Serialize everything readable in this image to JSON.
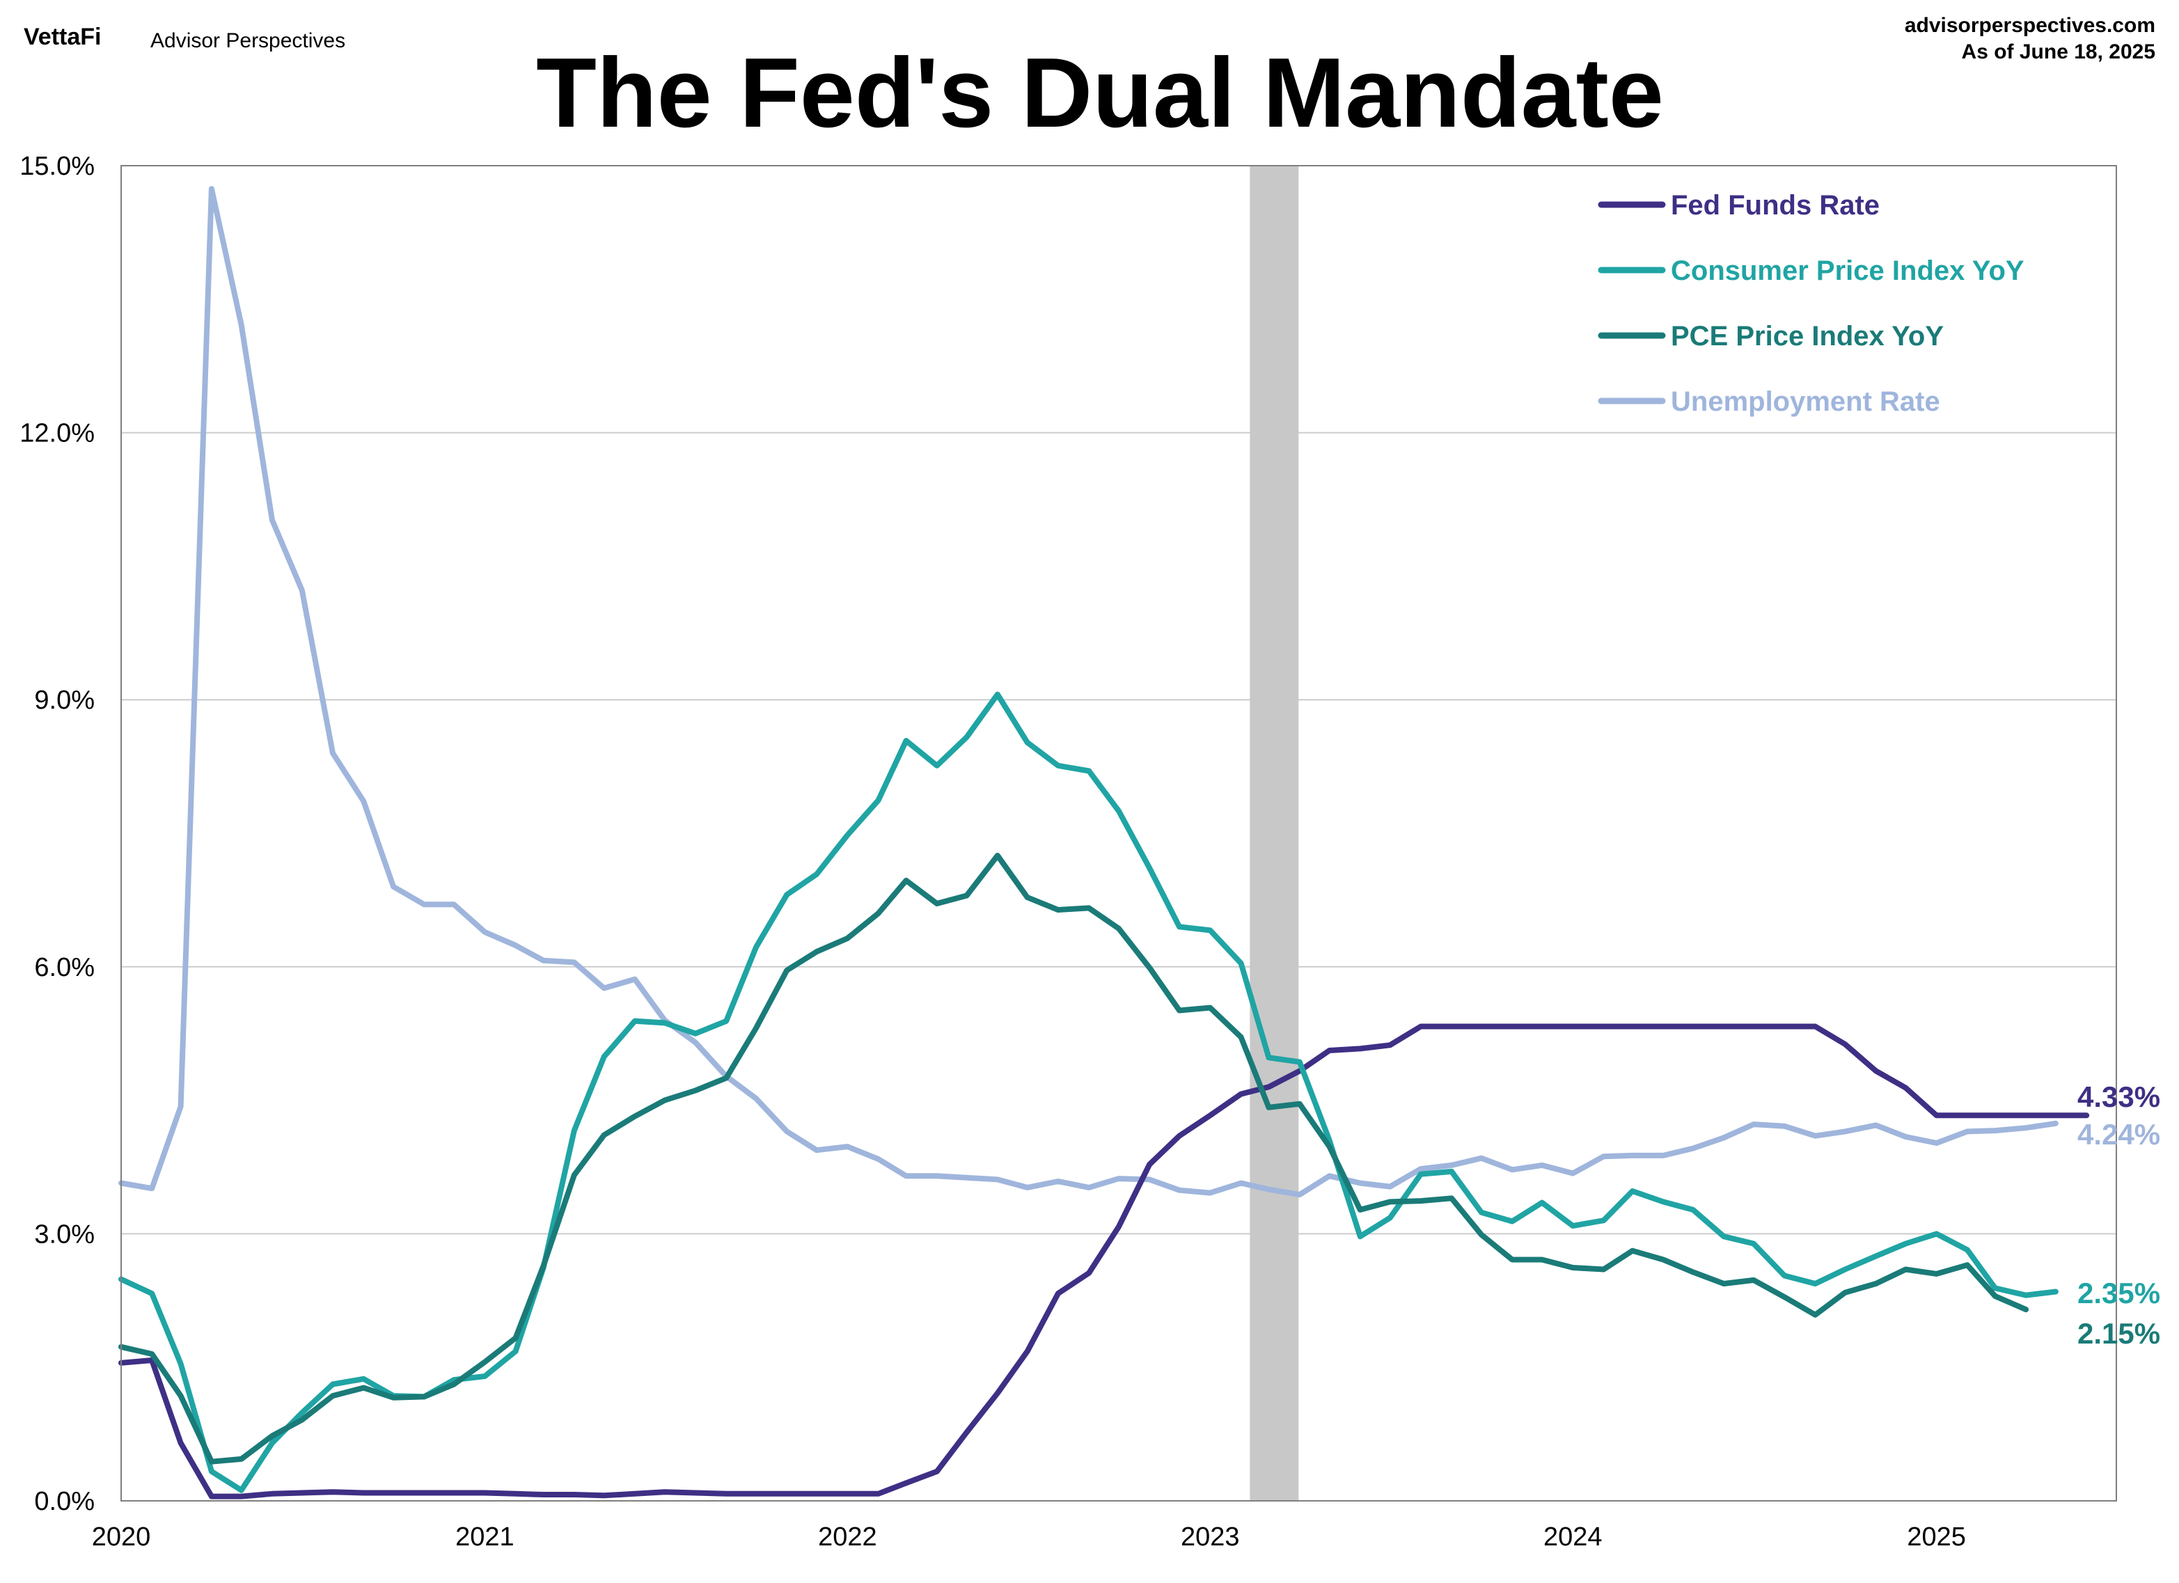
{
  "header": {
    "logo_text": "VettaFi",
    "brand_text": "Advisor Perspectives",
    "title": "The Fed's Dual Mandate",
    "source": "advisorperspectives.com",
    "as_of": "As of June 18, 2025"
  },
  "colors": {
    "fed_funds": "#3f2f85",
    "cpi": "#20a4a4",
    "pce": "#1a7b78",
    "unemployment": "#9fb5dc",
    "recession_band": "#c8c8c8",
    "grid": "#cccccc"
  },
  "chart_data": {
    "type": "line",
    "title": "The Fed's Dual Mandate",
    "xlim": [
      "2020-01-01",
      "2025-07-01"
    ],
    "ylim": [
      0,
      15
    ],
    "x_ticks": [
      {
        "date": "2020-01-01",
        "label": "2020"
      },
      {
        "date": "2021-01-01",
        "label": "2021"
      },
      {
        "date": "2022-01-01",
        "label": "2022"
      },
      {
        "date": "2023-01-01",
        "label": "2023"
      },
      {
        "date": "2024-01-01",
        "label": "2024"
      },
      {
        "date": "2025-01-01",
        "label": "2025"
      }
    ],
    "y_ticks": [
      {
        "value": 0,
        "label": "0.0%"
      },
      {
        "value": 3,
        "label": "3.0%"
      },
      {
        "value": 6,
        "label": "6.0%"
      },
      {
        "value": 9,
        "label": "9.0%"
      },
      {
        "value": 12,
        "label": "12.0%"
      },
      {
        "value": 15,
        "label": "15.0%"
      }
    ],
    "grid": true,
    "legend_position": "top-right",
    "shaded_region": {
      "start": "2023-02-10",
      "end": "2023-03-31"
    },
    "series": [
      {
        "key": "fed_funds",
        "name": "Fed Funds Rate",
        "start": "2020-01-01",
        "end_label": "4.33%",
        "values": [
          1.55,
          1.58,
          0.65,
          0.05,
          0.05,
          0.08,
          0.09,
          0.1,
          0.09,
          0.09,
          0.09,
          0.09,
          0.09,
          0.08,
          0.07,
          0.07,
          0.06,
          0.08,
          0.1,
          0.09,
          0.08,
          0.08,
          0.08,
          0.08,
          0.08,
          0.08,
          0.2,
          0.33,
          0.77,
          1.21,
          1.68,
          2.33,
          2.56,
          3.08,
          3.78,
          4.1,
          4.33,
          4.57,
          4.65,
          4.83,
          5.06,
          5.08,
          5.12,
          5.33,
          5.33,
          5.33,
          5.33,
          5.33,
          5.33,
          5.33,
          5.33,
          5.33,
          5.33,
          5.33,
          5.33,
          5.33,
          5.33,
          5.13,
          4.83,
          4.64,
          4.33,
          4.33,
          4.33,
          4.33,
          4.33,
          4.33
        ]
      },
      {
        "key": "cpi",
        "name": "Consumer Price Index YoY",
        "start": "2020-01-01",
        "end_label": "2.35%",
        "values": [
          2.49,
          2.33,
          1.54,
          0.33,
          0.12,
          0.65,
          0.99,
          1.31,
          1.37,
          1.18,
          1.17,
          1.36,
          1.4,
          1.68,
          2.62,
          4.16,
          4.99,
          5.39,
          5.37,
          5.25,
          5.39,
          6.22,
          6.81,
          7.04,
          7.48,
          7.87,
          8.54,
          8.26,
          8.58,
          9.06,
          8.52,
          8.26,
          8.2,
          7.75,
          7.11,
          6.45,
          6.41,
          6.04,
          4.98,
          4.93,
          4.05,
          2.97,
          3.18,
          3.67,
          3.7,
          3.24,
          3.14,
          3.35,
          3.09,
          3.15,
          3.48,
          3.36,
          3.27,
          2.97,
          2.89,
          2.53,
          2.44,
          2.6,
          2.75,
          2.89,
          3.0,
          2.82,
          2.39,
          2.31,
          2.35
        ]
      },
      {
        "key": "pce",
        "name": "PCE Price Index YoY",
        "start": "2020-01-01",
        "end_label": "2.15%",
        "values": [
          1.73,
          1.65,
          1.18,
          0.44,
          0.47,
          0.73,
          0.91,
          1.18,
          1.27,
          1.16,
          1.17,
          1.31,
          1.56,
          1.83,
          2.64,
          3.66,
          4.11,
          4.32,
          4.5,
          4.61,
          4.75,
          5.31,
          5.96,
          6.17,
          6.32,
          6.6,
          6.97,
          6.71,
          6.8,
          7.25,
          6.78,
          6.64,
          6.66,
          6.43,
          5.99,
          5.51,
          5.54,
          5.21,
          4.42,
          4.46,
          3.98,
          3.27,
          3.36,
          3.37,
          3.4,
          2.99,
          2.71,
          2.71,
          2.62,
          2.6,
          2.81,
          2.71,
          2.57,
          2.44,
          2.48,
          2.29,
          2.09,
          2.34,
          2.44,
          2.6,
          2.55,
          2.65,
          2.3,
          2.15
        ]
      },
      {
        "key": "unemployment",
        "name": "Unemployment Rate",
        "start": "2020-01-01",
        "end_label": "4.24%",
        "values": [
          3.57,
          3.51,
          4.43,
          14.74,
          13.21,
          11.02,
          10.23,
          8.4,
          7.86,
          6.9,
          6.7,
          6.7,
          6.39,
          6.24,
          6.07,
          6.05,
          5.76,
          5.86,
          5.4,
          5.15,
          4.77,
          4.52,
          4.15,
          3.94,
          3.98,
          3.84,
          3.65,
          3.65,
          3.63,
          3.61,
          3.52,
          3.59,
          3.52,
          3.62,
          3.61,
          3.49,
          3.46,
          3.57,
          3.5,
          3.44,
          3.65,
          3.57,
          3.53,
          3.73,
          3.77,
          3.85,
          3.72,
          3.77,
          3.68,
          3.87,
          3.88,
          3.88,
          3.96,
          4.08,
          4.23,
          4.21,
          4.1,
          4.15,
          4.22,
          4.09,
          4.02,
          4.15,
          4.16,
          4.19,
          4.24
        ]
      }
    ]
  }
}
